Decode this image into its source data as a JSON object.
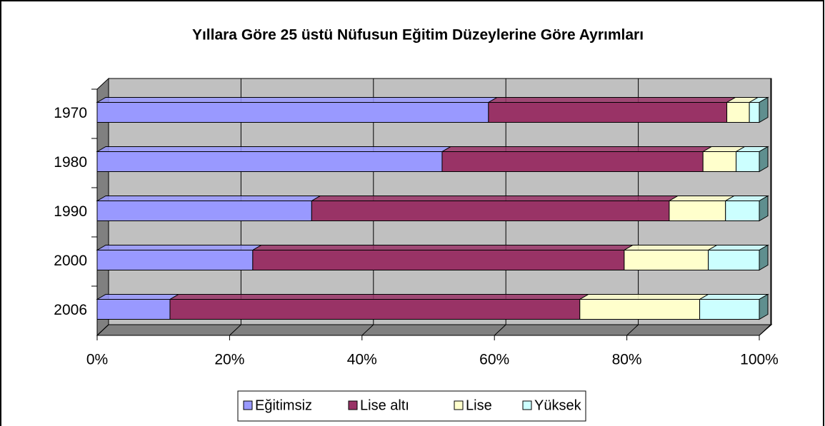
{
  "chart_data": {
    "type": "bar3d_stacked_horizontal",
    "title": "Yıllara Göre 25 üstü Nüfusun Eğitim Düzeylerine Göre Ayrımları",
    "categories": [
      "1970",
      "1980",
      "1990",
      "2000",
      "2006"
    ],
    "series": [
      {
        "name": "Eğitimsiz",
        "color": "#9999ff",
        "values": [
          59.1,
          52.1,
          32.4,
          23.5,
          11.0
        ]
      },
      {
        "name": "Lise altı",
        "color": "#993366",
        "values": [
          36.0,
          39.4,
          54.0,
          56.1,
          61.9
        ]
      },
      {
        "name": "Lise",
        "color": "#ffffcc",
        "values": [
          3.4,
          5.0,
          8.5,
          12.7,
          18.1
        ]
      },
      {
        "name": "Yüksek",
        "color": "#ccffff",
        "values": [
          1.5,
          3.5,
          5.1,
          7.7,
          9.0
        ]
      }
    ],
    "xlim": [
      0,
      100
    ],
    "xticks": [
      {
        "value": 0,
        "label": "0%"
      },
      {
        "value": 20,
        "label": "20%"
      },
      {
        "value": 40,
        "label": "40%"
      },
      {
        "value": 60,
        "label": "60%"
      },
      {
        "value": 80,
        "label": "80%"
      },
      {
        "value": 100,
        "label": "100%"
      }
    ],
    "grid": true,
    "legend": "bottom"
  }
}
